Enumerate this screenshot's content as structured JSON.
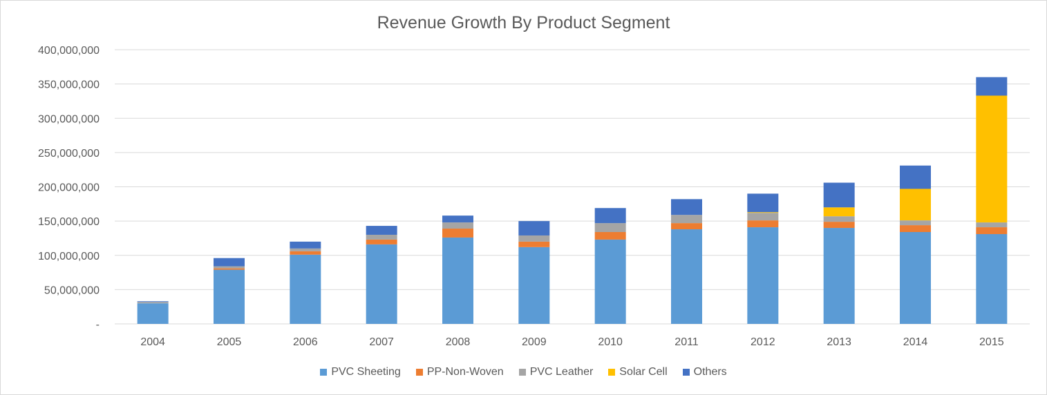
{
  "chart_data": {
    "type": "bar",
    "stacked": true,
    "title": "Revenue Growth By Product Segment",
    "xlabel": "",
    "ylabel": "",
    "ylim": [
      0,
      400000000
    ],
    "yticks": [
      0,
      50000000,
      100000000,
      150000000,
      200000000,
      250000000,
      300000000,
      350000000,
      400000000
    ],
    "ytick_labels": [
      "-",
      "50,000,000",
      "100,000,000",
      "150,000,000",
      "200,000,000",
      "250,000,000",
      "300,000,000",
      "350,000,000",
      "400,000,000"
    ],
    "grid": true,
    "legend_position": "bottom",
    "categories": [
      "2004",
      "2005",
      "2006",
      "2007",
      "2008",
      "2009",
      "2010",
      "2011",
      "2012",
      "2013",
      "2014",
      "2015"
    ],
    "series": [
      {
        "name": "PVC Sheeting",
        "color": "#5b9bd5",
        "values": [
          30000000,
          79000000,
          101000000,
          116000000,
          126000000,
          112000000,
          123000000,
          138000000,
          141000000,
          140000000,
          134000000,
          131000000
        ]
      },
      {
        "name": "PP-Non-Woven",
        "color": "#ed7d31",
        "values": [
          0,
          2000000,
          5000000,
          7000000,
          13000000,
          8000000,
          11000000,
          9000000,
          10000000,
          9000000,
          10000000,
          10000000
        ]
      },
      {
        "name": "PVC Leather",
        "color": "#a5a5a5",
        "values": [
          2000000,
          3000000,
          4000000,
          7000000,
          9000000,
          9000000,
          13000000,
          12000000,
          11000000,
          8000000,
          7000000,
          7000000
        ]
      },
      {
        "name": "Solar Cell",
        "color": "#ffc000",
        "values": [
          0,
          0,
          0,
          0,
          0,
          0,
          0,
          0,
          1000000,
          13000000,
          46000000,
          185000000
        ]
      },
      {
        "name": "Others",
        "color": "#4472c4",
        "values": [
          1000000,
          12000000,
          10000000,
          13000000,
          10000000,
          21000000,
          22000000,
          23000000,
          27000000,
          36000000,
          34000000,
          27000000
        ]
      }
    ]
  }
}
